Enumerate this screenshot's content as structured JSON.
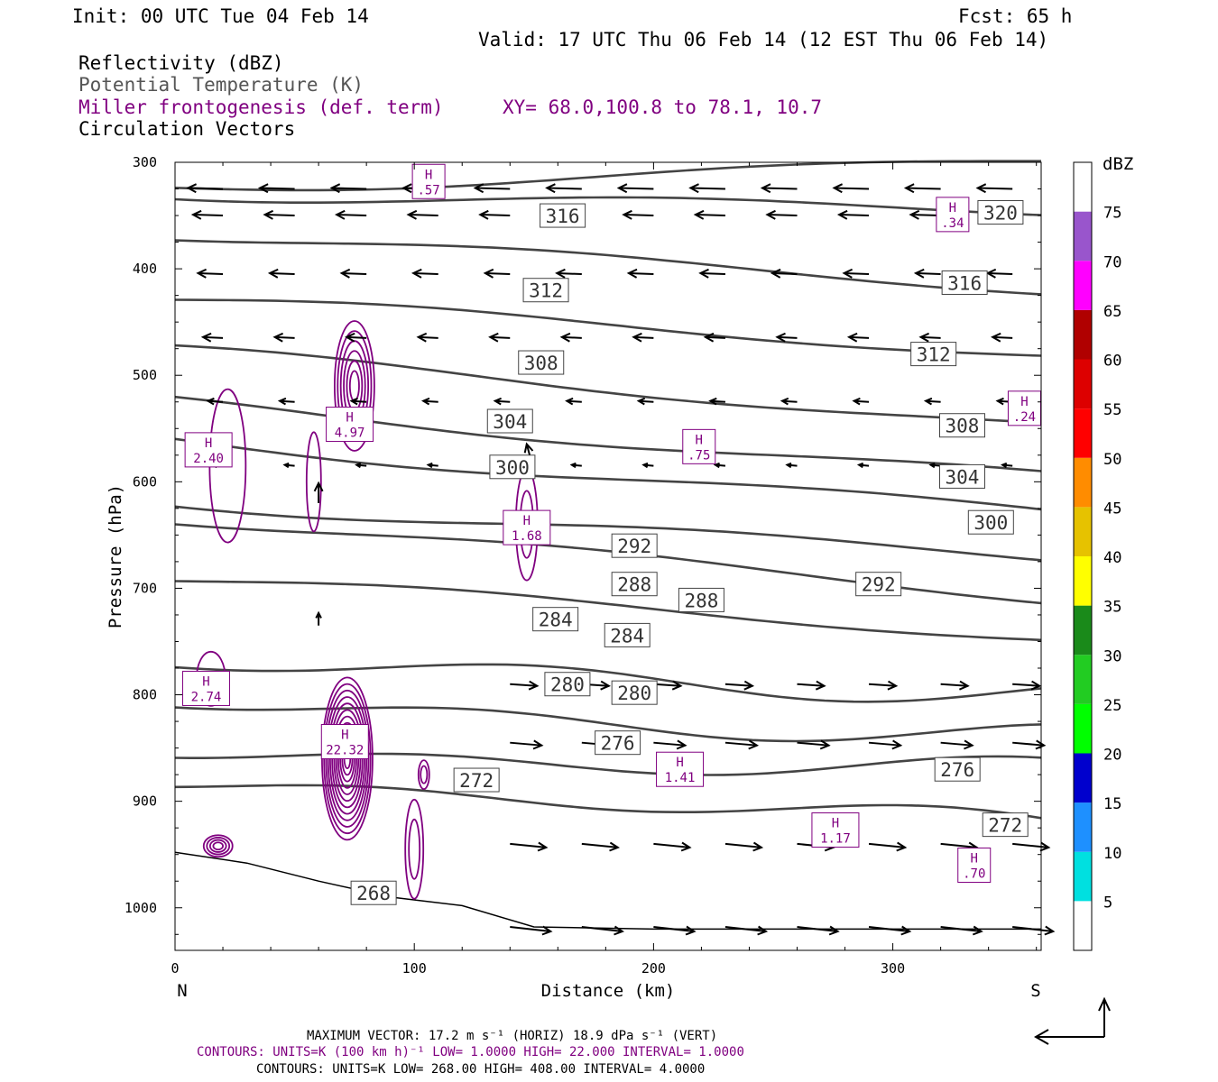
{
  "header": {
    "init": "Init: 00 UTC Tue 04 Feb 14",
    "fcst": "Fcst:   65 h",
    "valid": "Valid: 17 UTC Thu 06 Feb 14 (12 EST Thu 06 Feb 14)",
    "fields": [
      {
        "label": "Reflectivity (dBZ)",
        "color": "#000000"
      },
      {
        "label": "Potential Temperature (K)",
        "color": "#555555"
      },
      {
        "label": "Miller frontogenesis (def. term)",
        "color": "#800080"
      },
      {
        "label": "Circulation Vectors",
        "color": "#000000"
      }
    ],
    "xy": "XY=  68.0,100.8 to  78.1, 10.7"
  },
  "chart_data": {
    "type": "cross-section",
    "xlabel": "Distance (km)",
    "ylabel": "Pressure (hPa)",
    "xlim": [
      0,
      362
    ],
    "ylim": [
      1040,
      300
    ],
    "x_ticks": [
      "0",
      "100",
      "200",
      "300"
    ],
    "y_ticks": [
      "300",
      "400",
      "500",
      "600",
      "700",
      "800",
      "900",
      "1000"
    ],
    "left_end": "N",
    "right_end": "S",
    "colorbar": {
      "title": "dBZ",
      "levels": [
        "5",
        "10",
        "15",
        "20",
        "25",
        "30",
        "35",
        "40",
        "45",
        "50",
        "55",
        "60",
        "65",
        "70",
        "75"
      ],
      "colors": [
        "#ffffff",
        "#00e0e0",
        "#1e90ff",
        "#0000cd",
        "#00ff00",
        "#22cc22",
        "#1a8a1a",
        "#ffff00",
        "#e6c200",
        "#ff8c00",
        "#ff0000",
        "#dd0000",
        "#b00000",
        "#ff00ff",
        "#9955cc",
        "#ffffff"
      ]
    },
    "theta_contour_labels": [
      {
        "value": "320",
        "x": 345,
        "p": 347
      },
      {
        "value": "316",
        "x": 162,
        "p": 350
      },
      {
        "value": "316",
        "x": 330,
        "p": 413
      },
      {
        "value": "312",
        "x": 155,
        "p": 420
      },
      {
        "value": "312",
        "x": 317,
        "p": 480
      },
      {
        "value": "308",
        "x": 153,
        "p": 488
      },
      {
        "value": "308",
        "x": 329,
        "p": 547
      },
      {
        "value": "304",
        "x": 140,
        "p": 543
      },
      {
        "value": "304",
        "x": 329,
        "p": 595
      },
      {
        "value": "300",
        "x": 141,
        "p": 586
      },
      {
        "value": "300",
        "x": 341,
        "p": 638
      },
      {
        "value": "292",
        "x": 192,
        "p": 660
      },
      {
        "value": "292",
        "x": 294,
        "p": 696
      },
      {
        "value": "288",
        "x": 192,
        "p": 696
      },
      {
        "value": "288",
        "x": 220,
        "p": 711
      },
      {
        "value": "284",
        "x": 159,
        "p": 729
      },
      {
        "value": "284",
        "x": 189,
        "p": 744
      },
      {
        "value": "280",
        "x": 164,
        "p": 790
      },
      {
        "value": "280",
        "x": 192,
        "p": 798
      },
      {
        "value": "276",
        "x": 185,
        "p": 845
      },
      {
        "value": "276",
        "x": 327,
        "p": 870
      },
      {
        "value": "272",
        "x": 126,
        "p": 880
      },
      {
        "value": "272",
        "x": 347,
        "p": 922
      },
      {
        "value": "268",
        "x": 83,
        "p": 986
      }
    ],
    "frontogenesis_maxima": [
      {
        "label": "H",
        "value": ".57",
        "x": 106,
        "p": 318
      },
      {
        "label": "H",
        "value": ".34",
        "x": 325,
        "p": 349
      },
      {
        "label": "H",
        "value": ".24",
        "x": 355,
        "p": 531
      },
      {
        "label": "H",
        "value": "4.97",
        "x": 73,
        "p": 546
      },
      {
        "label": "H",
        "value": "2.40",
        "x": 14,
        "p": 570
      },
      {
        "label": "H",
        "value": ".75",
        "x": 219,
        "p": 567
      },
      {
        "label": "H",
        "value": "1.68",
        "x": 147,
        "p": 643
      },
      {
        "label": "H",
        "value": "2.74",
        "x": 13,
        "p": 794
      },
      {
        "label": "H",
        "value": "22.32",
        "x": 71,
        "p": 844
      },
      {
        "label": "H",
        "value": "1.41",
        "x": 211,
        "p": 870
      },
      {
        "label": "H",
        "value": "1.17",
        "x": 276,
        "p": 927
      },
      {
        "label": "H",
        "value": ".70",
        "x": 334,
        "p": 960
      }
    ]
  },
  "footer": {
    "max_vector": "MAXIMUM VECTOR:  17.2 m s⁻¹ (HORIZ)       18.9 dPa s⁻¹ (VERT)",
    "contours_fronto": "CONTOURS:  UNITS=K (100 km h)⁻¹  LOW=   1.0000       HIGH=  22.000      INTERVAL=    1.0000",
    "contours_theta": "CONTOURS:  UNITS=K  LOW=   268.00       HIGH=  408.00       INTERVAL=    4.0000"
  },
  "colors": {
    "theta": "#444444",
    "fronto": "#800080",
    "vector": "#000000"
  }
}
